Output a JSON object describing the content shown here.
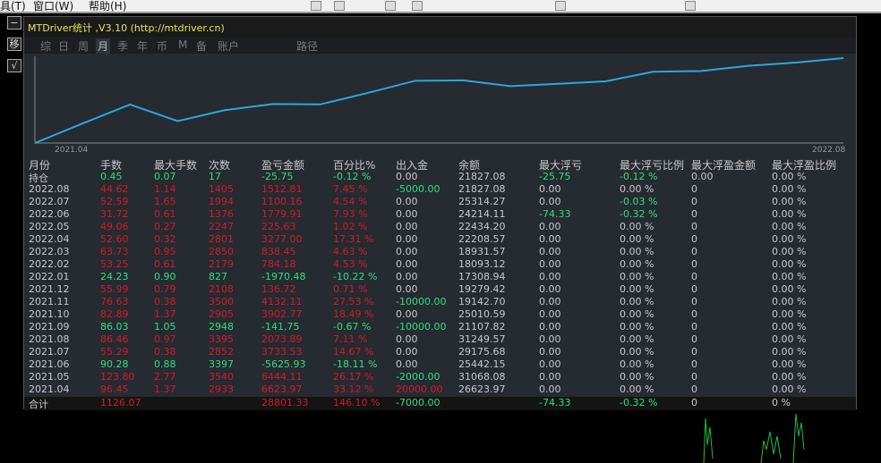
{
  "menubar": {
    "items": [
      "具(T)",
      "窗口(W)",
      "帮助(H)"
    ]
  },
  "leftbar": {
    "buttons": [
      "−",
      "移",
      "√"
    ]
  },
  "window": {
    "title": "MTDriver统计 ,V3.10 (http://mtdriver.cn)"
  },
  "tabs": [
    {
      "label": "综"
    },
    {
      "label": "日"
    },
    {
      "label": "周"
    },
    {
      "label": "月",
      "active": true
    },
    {
      "label": "季"
    },
    {
      "label": "年"
    },
    {
      "label": "币"
    },
    {
      "label": "M"
    },
    {
      "label": "备"
    },
    {
      "label": "账户"
    },
    {
      "label": "路径"
    }
  ],
  "chart_data": {
    "type": "line",
    "x_start_label": "2021.04",
    "x_end_label": "2022.08",
    "line_color": "#2aa8e0",
    "series": "cumulative 盈亏金额 by month"
  },
  "table": {
    "headers": [
      "月份",
      "手数",
      "最大手数",
      "次数",
      "盈亏金额",
      "百分比%",
      "出入金",
      "余额",
      "最大浮亏",
      "最大浮亏比例",
      "最大浮盈金额",
      "最大浮盈比例"
    ],
    "rows": [
      [
        "持仓",
        "0.45",
        "0.07",
        "17",
        "-25.75",
        "-0.12 %",
        "0.00",
        "21827.08",
        "-25.75",
        "-0.12 %",
        "0.00",
        "0.00 %"
      ],
      [
        "2022.08",
        "44.62",
        "1.14",
        "1405",
        "1512.81",
        "7.45 %",
        "-5000.00",
        "21827.08",
        "0.00",
        "0.00 %",
        "0",
        "0.00 %"
      ],
      [
        "2022.07",
        "52.59",
        "1.65",
        "1994",
        "1100.16",
        "4.54 %",
        "0.00",
        "25314.27",
        "0.00",
        "-0.03 %",
        "0",
        "0.00 %"
      ],
      [
        "2022.06",
        "31.72",
        "0.61",
        "1376",
        "1779.91",
        "7.93 %",
        "0.00",
        "24214.11",
        "-74.33",
        "-0.32 %",
        "0",
        "0.00 %"
      ],
      [
        "2022.05",
        "49.06",
        "0.27",
        "2247",
        "225.63",
        "1.02 %",
        "0.00",
        "22434.20",
        "0.00",
        "0.00 %",
        "0",
        "0.00 %"
      ],
      [
        "2022.04",
        "52.60",
        "0.32",
        "2801",
        "3277.00",
        "17.31 %",
        "0.00",
        "22208.57",
        "0.00",
        "0.00 %",
        "0",
        "0.00 %"
      ],
      [
        "2022.03",
        "63.73",
        "0.95",
        "2850",
        "838.45",
        "4.63 %",
        "0.00",
        "18931.57",
        "0.00",
        "0.00 %",
        "0",
        "0.00 %"
      ],
      [
        "2022.02",
        "53.25",
        "0.61",
        "2179",
        "784.18",
        "4.53 %",
        "0.00",
        "18093.12",
        "0.00",
        "0.00 %",
        "0",
        "0.00 %"
      ],
      [
        "2022.01",
        "24.23",
        "0.90",
        "827",
        "-1970.48",
        "-10.22 %",
        "0.00",
        "17308.94",
        "0.00",
        "0.00 %",
        "0",
        "0.00 %"
      ],
      [
        "2021.12",
        "55.99",
        "0.79",
        "2108",
        "136.72",
        "0.71 %",
        "0.00",
        "19279.42",
        "0.00",
        "0.00 %",
        "0",
        "0.00 %"
      ],
      [
        "2021.11",
        "76.63",
        "0.38",
        "3500",
        "4132.11",
        "27.53 %",
        "-10000.00",
        "19142.70",
        "0.00",
        "0.00 %",
        "0",
        "0.00 %"
      ],
      [
        "2021.10",
        "82.89",
        "1.37",
        "2905",
        "3902.77",
        "18.49 %",
        "0.00",
        "25010.59",
        "0.00",
        "0.00 %",
        "0",
        "0.00 %"
      ],
      [
        "2021.09",
        "86.03",
        "1.05",
        "2948",
        "-141.75",
        "-0.67 %",
        "-10000.00",
        "21107.82",
        "0.00",
        "0.00 %",
        "0",
        "0.00 %"
      ],
      [
        "2021.08",
        "86.46",
        "0.97",
        "3395",
        "2073.89",
        "7.11 %",
        "0.00",
        "31249.57",
        "0.00",
        "0.00 %",
        "0",
        "0.00 %"
      ],
      [
        "2021.07",
        "55.29",
        "0.38",
        "2852",
        "3733.53",
        "14.67 %",
        "0.00",
        "29175.68",
        "0.00",
        "0.00 %",
        "0",
        "0.00 %"
      ],
      [
        "2021.06",
        "90.28",
        "0.88",
        "3397",
        "-5625.93",
        "-18.11 %",
        "0.00",
        "25442.15",
        "0.00",
        "0.00 %",
        "0",
        "0.00 %"
      ],
      [
        "2021.05",
        "123.80",
        "2.77",
        "3540",
        "6444.11",
        "26.17 %",
        "-2000.00",
        "31068.08",
        "0.00",
        "0.00 %",
        "0",
        "0.00 %"
      ],
      [
        "2021.04",
        "96.45",
        "1.37",
        "2933",
        "6623.97",
        "33.12 %",
        "20000.00",
        "26623.97",
        "0.00",
        "0.00 %",
        "0",
        "0.00 %"
      ]
    ],
    "total": [
      "合计",
      "1126.07",
      "",
      "",
      "28801.33",
      "146.10 %",
      "-7000.00",
      "",
      "-74.33",
      "-0.32 %",
      "0",
      "0 %"
    ]
  },
  "colors": {
    "positive": "#d01c24",
    "negative": "#2ee07a",
    "neutral": "#c8c8c8",
    "title": "#e5e55a"
  }
}
